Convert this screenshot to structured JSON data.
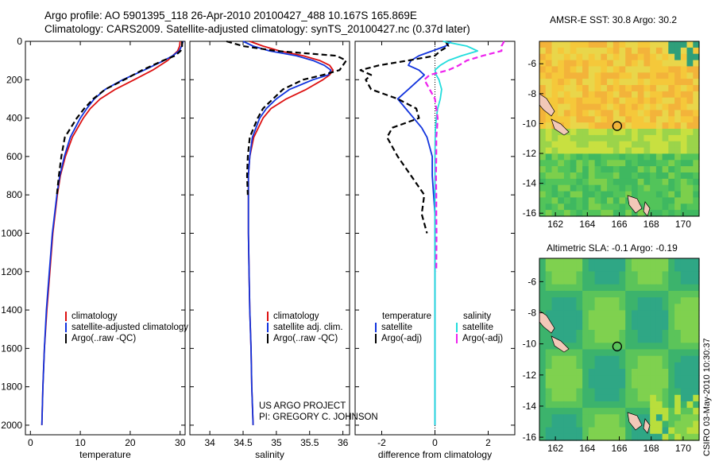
{
  "title": {
    "line1": "Argo profile: AO 5901395_118 26-Apr-2010 20100427_488 10.167S 165.869E",
    "line2": "Climatology: CARS2009. Satellite-adjusted climatology: synTS_20100427.nc (0.37d later)"
  },
  "colors": {
    "clim": "#dd1111",
    "sat": "#1133dd",
    "argo": "#000000",
    "sat_sal": "#22dddd",
    "argo_sal": "#ee22ee"
  },
  "chart_data": [
    {
      "type": "line",
      "name": "temperature-profile",
      "xlabel": "temperature",
      "ylabel": "",
      "xlim": [
        -1,
        31
      ],
      "ylim": [
        2050,
        0
      ],
      "xticks": [
        "0",
        "10",
        "20",
        "30"
      ],
      "yticks": [
        "0",
        "200",
        "400",
        "600",
        "800",
        "1000",
        "1200",
        "1400",
        "1600",
        "1800",
        "2000"
      ],
      "depth": [
        0,
        25,
        50,
        75,
        100,
        150,
        200,
        250,
        300,
        350,
        400,
        500,
        600,
        700,
        800,
        1000,
        1200,
        1400,
        1600,
        1800,
        2000
      ],
      "series": [
        {
          "name": "climatology",
          "style": "solid",
          "color": "clim",
          "values": [
            30.0,
            29.9,
            29.5,
            28.5,
            27.5,
            24.5,
            20.8,
            17.0,
            14.0,
            12.0,
            10.6,
            8.4,
            7.0,
            6.0,
            5.4,
            4.5,
            3.9,
            3.3,
            2.8,
            2.5,
            2.3
          ]
        },
        {
          "name": "satellite-adjusted climatology",
          "style": "solid",
          "color": "sat",
          "values": [
            30.6,
            30.3,
            29.8,
            28.5,
            26.8,
            22.8,
            18.5,
            15.0,
            12.8,
            11.3,
            10.0,
            8.0,
            6.8,
            5.9,
            5.3,
            4.4,
            3.8,
            3.2,
            2.8,
            2.5,
            2.3
          ]
        },
        {
          "name": "Argo(..raw -QC)",
          "style": "dashed",
          "color": "argo",
          "values": [
            30.4,
            30.4,
            30.1,
            29.0,
            26.6,
            22.4,
            18.8,
            15.0,
            12.6,
            10.8,
            9.3,
            6.9,
            6.2,
            5.7,
            5.3,
            null,
            null,
            null,
            null,
            null,
            null
          ]
        }
      ],
      "legend": [
        "climatology",
        "satellite-adjusted climatology",
        "Argo(..raw -QC)"
      ]
    },
    {
      "type": "line",
      "name": "salinity-profile",
      "xlabel": "salinity",
      "xlim": [
        33.7,
        36.1
      ],
      "ylim": [
        2050,
        0
      ],
      "xticks": [
        "34",
        "34.5",
        "35",
        "35.5",
        "36"
      ],
      "depth": [
        0,
        25,
        50,
        75,
        100,
        125,
        150,
        175,
        200,
        250,
        300,
        350,
        400,
        500,
        600,
        700,
        800,
        1000,
        1200,
        1400,
        1600,
        1800,
        2000
      ],
      "series": [
        {
          "name": "climatology",
          "style": "solid",
          "color": "clim",
          "values": [
            34.6,
            34.8,
            35.05,
            35.4,
            35.65,
            35.8,
            35.85,
            35.8,
            35.7,
            35.45,
            35.15,
            34.92,
            34.8,
            34.66,
            34.6,
            34.58,
            34.58,
            34.58,
            34.59,
            34.6,
            34.62,
            34.63,
            34.65
          ]
        },
        {
          "name": "satellite adj. clim.",
          "style": "solid",
          "color": "sat",
          "values": [
            34.5,
            34.65,
            34.9,
            35.3,
            35.55,
            35.72,
            35.82,
            35.78,
            35.55,
            35.2,
            35.0,
            34.85,
            34.75,
            34.64,
            34.6,
            34.58,
            34.58,
            34.58,
            34.59,
            34.6,
            34.62,
            34.63,
            34.65
          ]
        },
        {
          "name": "Argo(..raw -QC)",
          "style": "dashed",
          "color": "argo",
          "values": [
            34.25,
            34.5,
            35.0,
            35.9,
            36.05,
            36.0,
            35.95,
            35.7,
            35.4,
            35.1,
            34.95,
            34.8,
            34.72,
            34.6,
            34.57,
            34.56,
            34.57,
            null,
            null,
            null,
            null,
            null,
            null
          ]
        }
      ],
      "legend": [
        "climatology",
        "satellite adj. clim.",
        "Argo(..raw -QC)"
      ]
    },
    {
      "type": "line",
      "name": "difference-profile",
      "xlabel": "difference from climatology",
      "xlim": [
        -3,
        3
      ],
      "ylim": [
        2050,
        0
      ],
      "xticks": [
        "-2",
        "0",
        "2"
      ],
      "depth": [
        0,
        25,
        50,
        75,
        100,
        125,
        150,
        175,
        200,
        250,
        300,
        350,
        400,
        450,
        500,
        600,
        700,
        800,
        900,
        1000,
        1200,
        1400,
        1600,
        1800,
        2000
      ],
      "series": [
        {
          "name": "temperature satellite",
          "style": "solid",
          "color": "sat",
          "values": [
            0.6,
            0.4,
            -0.1,
            -0.6,
            -0.9,
            -1.0,
            -0.6,
            -0.4,
            -0.6,
            -1.0,
            -1.4,
            -1.1,
            -0.8,
            -0.5,
            -0.3,
            -0.1,
            -0.1,
            -0.05,
            0,
            0,
            0,
            0,
            0,
            0,
            0
          ]
        },
        {
          "name": "temperature Argo(-adj)",
          "style": "dashed",
          "color": "argo",
          "values": [
            0.4,
            0.5,
            0.2,
            0.0,
            -1.0,
            -2.1,
            -2.8,
            -2.4,
            -2.6,
            -2.4,
            -1.4,
            -0.7,
            -0.6,
            -1.6,
            -1.8,
            -1.4,
            -0.9,
            -0.4,
            -0.5,
            -0.3,
            null,
            null,
            null,
            null,
            null
          ]
        },
        {
          "name": "salinity satellite",
          "style": "solid",
          "color": "sat_sal",
          "values": [
            0.3,
            1.2,
            1.6,
            1.0,
            0.5,
            0.2,
            0.0,
            0.05,
            0.15,
            0.25,
            0.2,
            0.1,
            0.05,
            0.02,
            0.01,
            0,
            0,
            0,
            0,
            0,
            0,
            0,
            0,
            0,
            0
          ]
        },
        {
          "name": "salinity Argo(-adj)",
          "style": "dashed",
          "color": "argo_sal",
          "values": [
            2.6,
            2.5,
            2.5,
            1.8,
            1.2,
            0.9,
            0.5,
            -0.2,
            -0.4,
            -0.2,
            0.0,
            0.05,
            0.1,
            0.08,
            0.05,
            0.05,
            0.04,
            0.05,
            0.05,
            0.06,
            0.05,
            null,
            null,
            null,
            null
          ]
        }
      ],
      "legend_left_title": "temperature",
      "legend_right_title": "salinity",
      "legend_left": [
        "satellite",
        "Argo(-adj)"
      ],
      "legend_right": [
        "satellite",
        "Argo(-adj)"
      ]
    },
    {
      "type": "heatmap",
      "name": "sst-map",
      "title": "AMSR-E SST: 30.8  Argo: 30.2",
      "xlim": [
        161,
        171
      ],
      "ylim": [
        -16.2,
        -4.5
      ],
      "xticks": [
        "162",
        "164",
        "166",
        "168",
        "170"
      ],
      "yticks": [
        "-6",
        "-8",
        "-10",
        "-12",
        "-14",
        "-16"
      ],
      "marker": {
        "lon": 165.869,
        "lat": -10.167
      }
    },
    {
      "type": "heatmap",
      "name": "sla-map",
      "title": "Altimetric SLA: -0.1  Argo: -0.19",
      "xlim": [
        161,
        171
      ],
      "ylim": [
        -16.2,
        -4.5
      ],
      "xticks": [
        "162",
        "164",
        "166",
        "168",
        "170"
      ],
      "yticks": [
        "-6",
        "-8",
        "-10",
        "-12",
        "-14",
        "-16"
      ],
      "marker": {
        "lon": 165.869,
        "lat": -10.167
      }
    }
  ],
  "credit": {
    "line1": "US ARGO PROJECT",
    "line2": "PI: GREGORY C. JOHNSON"
  },
  "stamp": "CSIRO 03-May-2010 10:30:37"
}
